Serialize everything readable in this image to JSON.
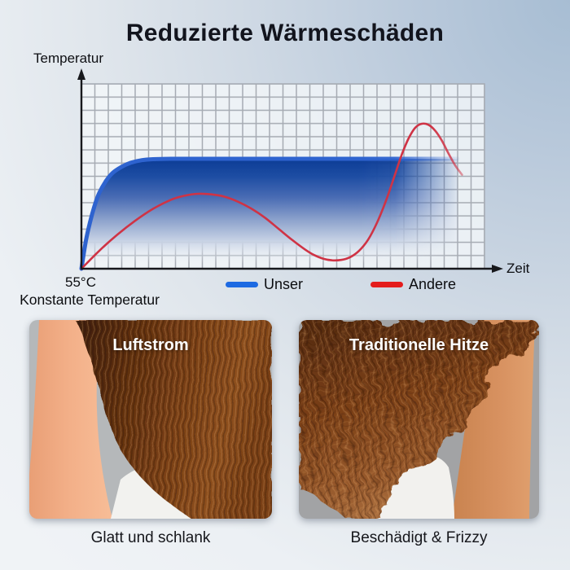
{
  "title": "Reduzierte Wärmeschäden",
  "colors": {
    "legend_unser": "#1d6ae2",
    "legend_andere": "#e41c1c",
    "band_edge": "#2e63cf",
    "andere_line": "#cf3345",
    "background_accent": "#a7bdd3"
  },
  "chart_data": {
    "type": "line",
    "title": "",
    "xlabel": "Zeit",
    "ylabel": "Temperatur",
    "origin_label": "55°C",
    "origin_caption": "Konstante Temperatur",
    "axes_numeric_ticks": "none (qualitative time/temperature sketch)",
    "plateau_temperature_c": 55,
    "x_units_range": [
      0,
      90
    ],
    "grid": true,
    "legend_position": "below-axis",
    "legend": [
      {
        "label": "Unser",
        "color": "#1d6ae2"
      },
      {
        "label": "Andere",
        "color": "#e41c1c"
      }
    ],
    "series": [
      {
        "name": "Unser",
        "style": "thick gradient band, rises fast then constant at 55°C, fades out right",
        "stroke": "#2e63cf",
        "points_t_temp": [
          [
            0,
            0
          ],
          [
            1,
            14
          ],
          [
            2,
            24
          ],
          [
            3,
            32
          ],
          [
            4,
            38
          ],
          [
            5.5,
            44
          ],
          [
            7,
            48
          ],
          [
            9,
            51
          ],
          [
            11,
            53
          ],
          [
            13.5,
            54.3
          ],
          [
            16,
            54.8
          ],
          [
            20,
            55
          ],
          [
            30,
            55
          ],
          [
            45,
            55
          ],
          [
            60,
            55
          ],
          [
            75,
            55
          ],
          [
            84,
            55
          ]
        ]
      },
      {
        "name": "Andere",
        "style": "thin line, oscillates: hump, deep dip, overshoot peak above 55°C, fades out right",
        "stroke": "#cf3345",
        "points_t_temp": [
          [
            0,
            0
          ],
          [
            4,
            9
          ],
          [
            8,
            17
          ],
          [
            12,
            24
          ],
          [
            16,
            30
          ],
          [
            20,
            34.5
          ],
          [
            23,
            36.5
          ],
          [
            26,
            37.5
          ],
          [
            29,
            37.2
          ],
          [
            32,
            36
          ],
          [
            35,
            33.5
          ],
          [
            38,
            30
          ],
          [
            41,
            25.5
          ],
          [
            44,
            20
          ],
          [
            47,
            14.5
          ],
          [
            50,
            9.5
          ],
          [
            52,
            6.8
          ],
          [
            54,
            5
          ],
          [
            56,
            4.2
          ],
          [
            58,
            4.4
          ],
          [
            60,
            5.8
          ],
          [
            62,
            9
          ],
          [
            64,
            14.5
          ],
          [
            66,
            23
          ],
          [
            68,
            34
          ],
          [
            70,
            47
          ],
          [
            71.5,
            57
          ],
          [
            73,
            65
          ],
          [
            74.5,
            70.5
          ],
          [
            76,
            72.5
          ],
          [
            77.5,
            72
          ],
          [
            79,
            69
          ],
          [
            80.5,
            64
          ],
          [
            82,
            57.5
          ],
          [
            83.5,
            51.5
          ],
          [
            85,
            47
          ]
        ]
      }
    ]
  },
  "comparison": {
    "left": {
      "overlay_label": "Luftstrom",
      "caption": "Glatt und schlank"
    },
    "right": {
      "overlay_label": "Traditionelle Hitze",
      "caption": "Beschädigt & Frizzy"
    }
  }
}
